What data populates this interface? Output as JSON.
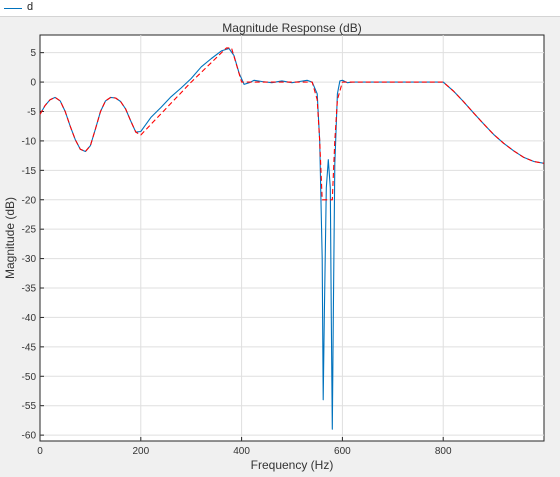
{
  "legend": {
    "items": [
      {
        "label": "d",
        "color": "#0072bd"
      }
    ]
  },
  "chart_data": {
    "type": "line",
    "title": "Magnitude Response (dB)",
    "xlabel": "Frequency (Hz)",
    "ylabel": "Magnitude (dB)",
    "xlim": [
      0,
      1000
    ],
    "ylim": [
      -61,
      8
    ],
    "xticks": [
      0,
      200,
      400,
      600,
      800
    ],
    "yticks": [
      5,
      0,
      -5,
      -10,
      -15,
      -20,
      -25,
      -30,
      -35,
      -40,
      -45,
      -50,
      -55,
      -60
    ],
    "grid": true,
    "series": [
      {
        "name": "d",
        "color": "#0072bd",
        "style": "solid",
        "x": [
          0,
          10,
          20,
          30,
          40,
          50,
          60,
          70,
          80,
          90,
          100,
          110,
          120,
          130,
          140,
          150,
          160,
          170,
          180,
          190,
          200,
          220,
          240,
          260,
          280,
          300,
          320,
          340,
          360,
          375,
          385,
          395,
          405,
          415,
          425,
          440,
          460,
          480,
          500,
          515,
          530,
          540,
          550,
          555,
          560,
          562,
          564,
          568,
          572,
          576,
          578,
          580,
          582,
          585,
          590,
          595,
          600,
          610,
          620,
          650,
          700,
          750,
          800,
          820,
          840,
          860,
          880,
          900,
          920,
          940,
          960,
          980,
          1000
        ],
        "y": [
          -5.5,
          -4,
          -3,
          -2.6,
          -3.2,
          -5,
          -7.5,
          -9.8,
          -11.4,
          -11.8,
          -10.8,
          -8,
          -5,
          -3.2,
          -2.6,
          -2.7,
          -3.3,
          -4.6,
          -6.6,
          -8.5,
          -8.4,
          -6,
          -4.3,
          -2.5,
          -1,
          0.6,
          2.6,
          4,
          5.3,
          5.7,
          4.5,
          1.5,
          -0.4,
          -0.1,
          0.3,
          0.1,
          -0.1,
          0.2,
          -0.1,
          0.1,
          0.3,
          0,
          -2,
          -10,
          -30,
          -54,
          -40,
          -18,
          -13.2,
          -18,
          -40,
          -59,
          -40,
          -14,
          -2,
          0.2,
          0.3,
          -0.1,
          0,
          0,
          0,
          0,
          0,
          -1.5,
          -3.3,
          -5.2,
          -7.1,
          -8.9,
          -10.4,
          -11.7,
          -12.8,
          -13.5,
          -13.8
        ]
      },
      {
        "name": "",
        "color": "#ff0000",
        "style": "dashed",
        "x": [
          0,
          10,
          20,
          30,
          40,
          50,
          60,
          70,
          80,
          90,
          100,
          110,
          120,
          130,
          140,
          150,
          160,
          170,
          180,
          190,
          200,
          300,
          370,
          380,
          400,
          410,
          500,
          540,
          550,
          555,
          560,
          580,
          585,
          590,
          600,
          800,
          820,
          840,
          860,
          880,
          900,
          920,
          940,
          960,
          980,
          1000
        ],
        "y": [
          -5.5,
          -4,
          -3,
          -2.6,
          -3.2,
          -5,
          -7.5,
          -9.8,
          -11.4,
          -11.8,
          -10.8,
          -8,
          -5,
          -3.2,
          -2.6,
          -2.7,
          -3.3,
          -4.6,
          -6.6,
          -8.5,
          -9,
          0,
          5.8,
          5.8,
          0,
          0,
          0,
          0,
          -3,
          -10,
          -20,
          -20,
          -10,
          -3,
          0,
          0,
          -1.5,
          -3.3,
          -5.2,
          -7.1,
          -8.9,
          -10.4,
          -11.7,
          -12.8,
          -13.5,
          -13.8
        ]
      }
    ]
  }
}
